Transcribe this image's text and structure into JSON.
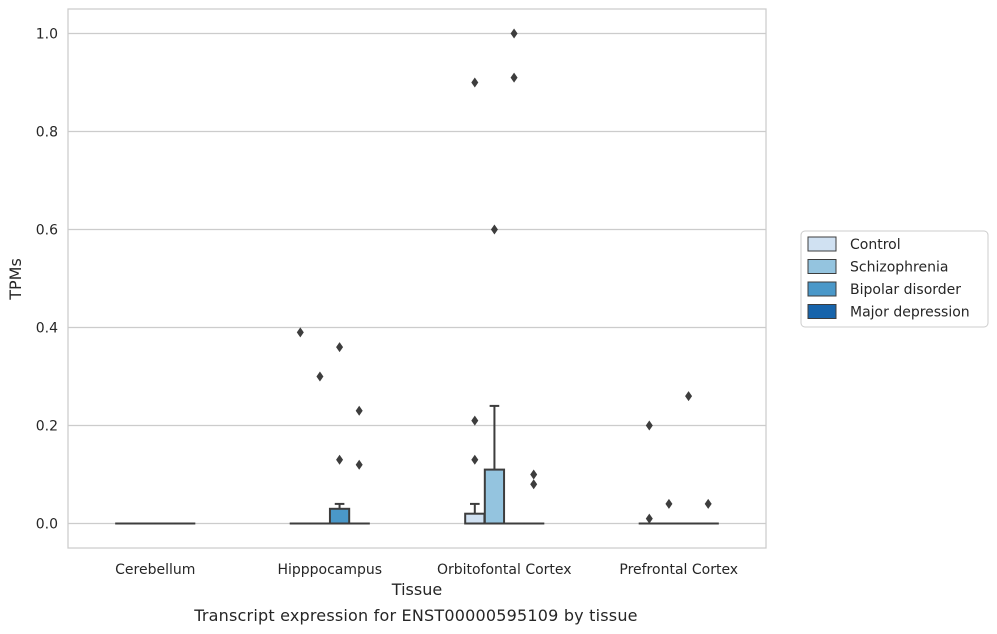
{
  "chart_data": {
    "type": "box",
    "title": "",
    "caption": "Transcript expression for ENST00000595109 by tissue",
    "xlabel": "Tissue",
    "ylabel": "TPMs",
    "ylim": [
      -0.05,
      1.05
    ],
    "yticks": [
      0.0,
      0.2,
      0.4,
      0.6,
      0.8,
      1.0
    ],
    "ytick_labels": [
      "0.0",
      "0.2",
      "0.4",
      "0.6",
      "0.8",
      "1.0"
    ],
    "grid": "horizontal",
    "legend_position": "right",
    "categories": [
      "Cerebellum",
      "Hipppocampus",
      "Orbitofontal Cortex",
      "Prefrontal Cortex"
    ],
    "series": [
      {
        "name": "Control",
        "color": "#d0e1f2",
        "boxes": [
          {
            "q1": 0,
            "median": 0,
            "q3": 0,
            "whisker_low": 0,
            "whisker_high": 0,
            "outliers": []
          },
          {
            "q1": 0,
            "median": 0,
            "q3": 0,
            "whisker_low": 0,
            "whisker_high": 0,
            "outliers": [
              0.39
            ]
          },
          {
            "q1": 0,
            "median": 0,
            "q3": 0.02,
            "whisker_low": 0,
            "whisker_high": 0.04,
            "outliers": [
              0.13,
              0.21,
              0.9
            ]
          },
          {
            "q1": 0,
            "median": 0,
            "q3": 0,
            "whisker_low": 0,
            "whisker_high": 0,
            "outliers": [
              0.01,
              0.2
            ]
          }
        ]
      },
      {
        "name": "Schizophrenia",
        "color": "#94c4df",
        "boxes": [
          {
            "q1": 0,
            "median": 0,
            "q3": 0,
            "whisker_low": 0,
            "whisker_high": 0,
            "outliers": []
          },
          {
            "q1": 0,
            "median": 0,
            "q3": 0,
            "whisker_low": 0,
            "whisker_high": 0,
            "outliers": [
              0.3
            ]
          },
          {
            "q1": 0,
            "median": 0,
            "q3": 0.11,
            "whisker_low": 0,
            "whisker_high": 0.24,
            "outliers": [
              0.6
            ]
          },
          {
            "q1": 0,
            "median": 0,
            "q3": 0,
            "whisker_low": 0,
            "whisker_high": 0,
            "outliers": [
              0.04
            ]
          }
        ]
      },
      {
        "name": "Bipolar disorder",
        "color": "#4a98c9",
        "boxes": [
          {
            "q1": 0,
            "median": 0,
            "q3": 0,
            "whisker_low": 0,
            "whisker_high": 0,
            "outliers": []
          },
          {
            "q1": 0,
            "median": 0,
            "q3": 0.03,
            "whisker_low": 0,
            "whisker_high": 0.04,
            "outliers": [
              0.13,
              0.36
            ]
          },
          {
            "q1": 0,
            "median": 0,
            "q3": 0,
            "whisker_low": 0,
            "whisker_high": 0,
            "outliers": [
              0.91,
              1.0
            ]
          },
          {
            "q1": 0,
            "median": 0,
            "q3": 0,
            "whisker_low": 0,
            "whisker_high": 0,
            "outliers": [
              0.26
            ]
          }
        ]
      },
      {
        "name": "Major depression",
        "color": "#1764ab",
        "boxes": [
          {
            "q1": 0,
            "median": 0,
            "q3": 0,
            "whisker_low": 0,
            "whisker_high": 0,
            "outliers": []
          },
          {
            "q1": 0,
            "median": 0,
            "q3": 0,
            "whisker_low": 0,
            "whisker_high": 0,
            "outliers": [
              0.12,
              0.23
            ]
          },
          {
            "q1": 0,
            "median": 0,
            "q3": 0,
            "whisker_low": 0,
            "whisker_high": 0,
            "outliers": [
              0.08,
              0.1
            ]
          },
          {
            "q1": 0,
            "median": 0,
            "q3": 0,
            "whisker_low": 0,
            "whisker_high": 0,
            "outliers": [
              0.04
            ]
          }
        ]
      }
    ]
  }
}
